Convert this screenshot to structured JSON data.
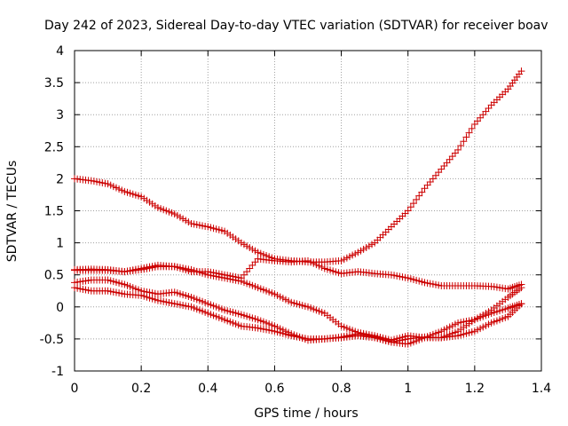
{
  "chart_data": {
    "type": "scatter",
    "title": "Day 242 of 2023, Sidereal Day-to-day VTEC variation (SDTVAR) for receiver boav",
    "xlabel": "GPS time / hours",
    "ylabel": "SDTVAR / TECUs",
    "xlim": [
      0,
      1.4
    ],
    "ylim": [
      -1,
      4
    ],
    "x_ticks": [
      0,
      0.2,
      0.4,
      0.6,
      0.8,
      1,
      1.2,
      1.4
    ],
    "y_ticks": [
      -1,
      -0.5,
      0,
      0.5,
      1,
      1.5,
      2,
      2.5,
      3,
      3.5,
      4
    ],
    "x_tick_labels": [
      "0",
      "0.2",
      "0.4",
      "0.6",
      "0.8",
      "1",
      "1.2",
      "1.4"
    ],
    "y_tick_labels": [
      "-1",
      "-0.5",
      "0",
      "0.5",
      "1",
      "1.5",
      "2",
      "2.5",
      "3",
      "3.5",
      "4"
    ],
    "grid": true,
    "marker": "+",
    "color": "#cc0000",
    "series": [
      {
        "name": "series-1",
        "x": [
          0,
          0.05,
          0.1,
          0.15,
          0.2,
          0.25,
          0.3,
          0.35,
          0.4,
          0.45,
          0.5,
          0.55,
          0.6,
          0.65,
          0.7,
          0.75,
          0.8,
          0.85,
          0.9,
          0.95,
          1.0,
          1.05,
          1.1,
          1.15,
          1.2,
          1.25,
          1.3,
          1.34
        ],
        "values": [
          2.0,
          1.97,
          1.92,
          1.8,
          1.72,
          1.55,
          1.45,
          1.3,
          1.25,
          1.18,
          1.0,
          0.85,
          0.75,
          0.72,
          0.7,
          0.7,
          0.72,
          0.85,
          1.0,
          1.25,
          1.5,
          1.85,
          2.15,
          2.45,
          2.85,
          3.15,
          3.4,
          3.68
        ]
      },
      {
        "name": "series-2",
        "x": [
          0,
          0.05,
          0.1,
          0.15,
          0.2,
          0.25,
          0.3,
          0.35,
          0.4,
          0.45,
          0.5,
          0.55,
          0.6,
          0.65,
          0.7,
          0.75,
          0.8,
          0.85,
          0.9,
          0.95,
          1.0,
          1.05,
          1.1,
          1.15,
          1.2,
          1.25,
          1.3,
          1.34
        ],
        "values": [
          0.57,
          0.57,
          0.57,
          0.55,
          0.58,
          0.63,
          0.63,
          0.58,
          0.5,
          0.45,
          0.4,
          0.3,
          0.2,
          0.07,
          0.0,
          -0.1,
          -0.3,
          -0.4,
          -0.45,
          -0.52,
          -0.45,
          -0.48,
          -0.48,
          -0.38,
          -0.2,
          -0.05,
          0.15,
          0.3
        ]
      },
      {
        "name": "series-3",
        "x": [
          0,
          0.05,
          0.1,
          0.15,
          0.2,
          0.25,
          0.3,
          0.35,
          0.4,
          0.45,
          0.5,
          0.55,
          0.6,
          0.65,
          0.7,
          0.75,
          0.8,
          0.85,
          0.9,
          0.95,
          1.0,
          1.05,
          1.1,
          1.15,
          1.2,
          1.25,
          1.3,
          1.34
        ],
        "values": [
          0.38,
          0.42,
          0.42,
          0.35,
          0.25,
          0.2,
          0.23,
          0.15,
          0.05,
          -0.05,
          -0.12,
          -0.2,
          -0.3,
          -0.42,
          -0.52,
          -0.5,
          -0.47,
          -0.42,
          -0.47,
          -0.55,
          -0.58,
          -0.48,
          -0.38,
          -0.25,
          -0.2,
          -0.1,
          -0.02,
          0.05
        ]
      },
      {
        "name": "series-4",
        "x": [
          0,
          0.05,
          0.1,
          0.15,
          0.2,
          0.25,
          0.3,
          0.35,
          0.4,
          0.45,
          0.5,
          0.55,
          0.6,
          0.65,
          0.7,
          0.75,
          0.8,
          0.85,
          0.9,
          0.95,
          1.0,
          1.05,
          1.1,
          1.15,
          1.2,
          1.25,
          1.3,
          1.34
        ],
        "values": [
          0.3,
          0.25,
          0.25,
          0.2,
          0.18,
          0.1,
          0.05,
          0.0,
          -0.1,
          -0.2,
          -0.3,
          -0.33,
          -0.38,
          -0.45,
          -0.5,
          -0.5,
          -0.48,
          -0.45,
          -0.48,
          -0.55,
          -0.5,
          -0.47,
          -0.48,
          -0.45,
          -0.38,
          -0.25,
          -0.15,
          0.05
        ]
      },
      {
        "name": "series-5",
        "x": [
          0,
          0.05,
          0.1,
          0.15,
          0.2,
          0.25,
          0.3,
          0.35,
          0.4,
          0.45,
          0.5,
          0.55,
          0.6,
          0.65,
          0.7,
          0.75,
          0.8,
          0.85,
          0.9,
          0.95,
          1.0,
          1.05,
          1.1,
          1.15,
          1.2,
          1.25,
          1.3,
          1.34
        ],
        "values": [
          0.58,
          0.59,
          0.58,
          0.55,
          0.6,
          0.65,
          0.63,
          0.55,
          0.55,
          0.5,
          0.45,
          0.75,
          0.72,
          0.7,
          0.72,
          0.6,
          0.52,
          0.55,
          0.52,
          0.5,
          0.45,
          0.38,
          0.33,
          0.33,
          0.33,
          0.32,
          0.28,
          0.35
        ]
      }
    ]
  }
}
